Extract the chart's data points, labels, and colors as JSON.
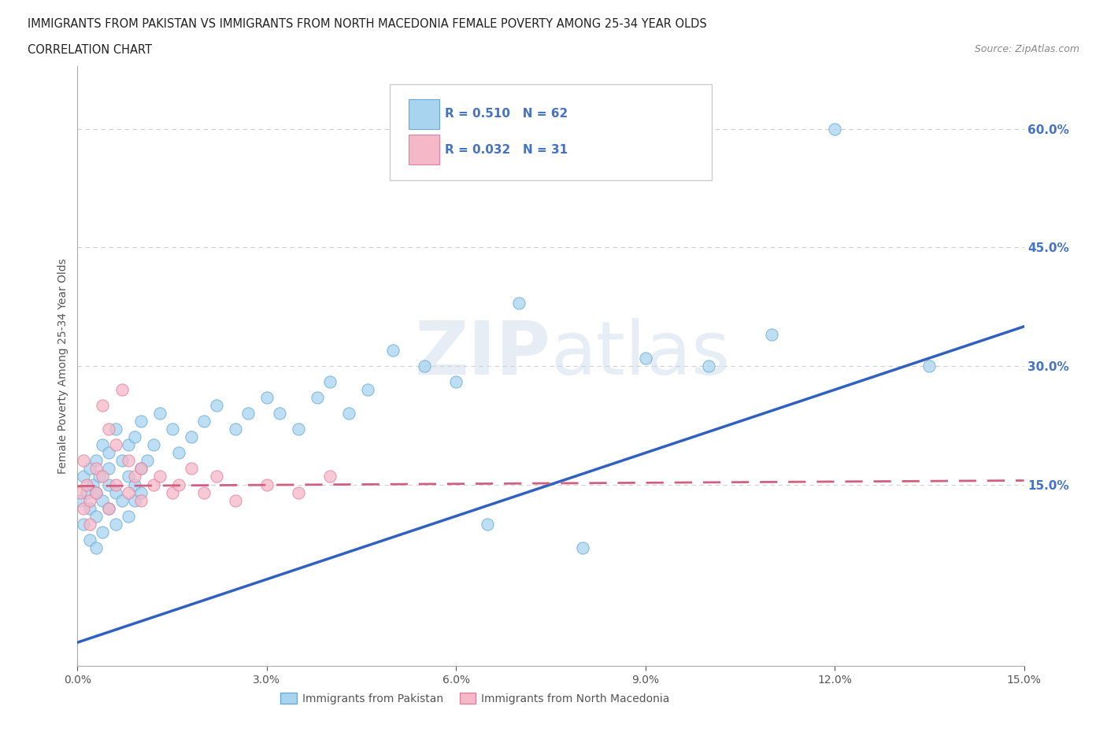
{
  "title_line1": "IMMIGRANTS FROM PAKISTAN VS IMMIGRANTS FROM NORTH MACEDONIA FEMALE POVERTY AMONG 25-34 YEAR OLDS",
  "title_line2": "CORRELATION CHART",
  "source_text": "Source: ZipAtlas.com",
  "ylabel": "Female Poverty Among 25-34 Year Olds",
  "xlim": [
    0.0,
    0.15
  ],
  "ylim": [
    -0.08,
    0.68
  ],
  "xticks": [
    0.0,
    0.03,
    0.06,
    0.09,
    0.12,
    0.15
  ],
  "yticks": [
    0.15,
    0.3,
    0.45,
    0.6
  ],
  "pakistan_color": "#a8d4f0",
  "pakistan_edge": "#6aaad4",
  "macedonia_color": "#f5b8c8",
  "macedonia_edge": "#e080a0",
  "trend_pakistan_color": "#3060c0",
  "trend_macedonia_color": "#d06080",
  "legend_R_pakistan": "R = 0.510",
  "legend_N_pakistan": "N = 62",
  "legend_R_macedonia": "R = 0.032",
  "legend_N_macedonia": "N = 31",
  "legend_label_pakistan": "Immigrants from Pakistan",
  "legend_label_macedonia": "Immigrants from North Macedonia",
  "watermark_zip": "ZIP",
  "watermark_atlas": "atlas",
  "ytick_color": "#4472c4",
  "grid_color": "#d0d0d0",
  "background_color": "#ffffff",
  "pak_x": [
    0.0005,
    0.001,
    0.001,
    0.0015,
    0.002,
    0.002,
    0.002,
    0.0025,
    0.003,
    0.003,
    0.003,
    0.003,
    0.0035,
    0.004,
    0.004,
    0.004,
    0.005,
    0.005,
    0.005,
    0.005,
    0.006,
    0.006,
    0.006,
    0.007,
    0.007,
    0.008,
    0.008,
    0.008,
    0.009,
    0.009,
    0.009,
    0.01,
    0.01,
    0.01,
    0.011,
    0.012,
    0.013,
    0.015,
    0.016,
    0.018,
    0.02,
    0.022,
    0.025,
    0.027,
    0.03,
    0.032,
    0.035,
    0.038,
    0.04,
    0.043,
    0.046,
    0.05,
    0.055,
    0.06,
    0.065,
    0.07,
    0.08,
    0.09,
    0.1,
    0.11,
    0.12,
    0.135
  ],
  "pak_y": [
    0.13,
    0.1,
    0.16,
    0.14,
    0.12,
    0.08,
    0.17,
    0.15,
    0.18,
    0.11,
    0.14,
    0.07,
    0.16,
    0.13,
    0.2,
    0.09,
    0.15,
    0.19,
    0.12,
    0.17,
    0.14,
    0.22,
    0.1,
    0.18,
    0.13,
    0.2,
    0.16,
    0.11,
    0.15,
    0.21,
    0.13,
    0.17,
    0.14,
    0.23,
    0.18,
    0.2,
    0.24,
    0.22,
    0.19,
    0.21,
    0.23,
    0.25,
    0.22,
    0.24,
    0.26,
    0.24,
    0.22,
    0.26,
    0.28,
    0.24,
    0.27,
    0.32,
    0.3,
    0.28,
    0.1,
    0.38,
    0.07,
    0.31,
    0.3,
    0.34,
    0.6,
    0.3
  ],
  "mac_x": [
    0.0005,
    0.001,
    0.001,
    0.0015,
    0.002,
    0.002,
    0.003,
    0.003,
    0.004,
    0.004,
    0.005,
    0.005,
    0.006,
    0.006,
    0.007,
    0.008,
    0.008,
    0.009,
    0.01,
    0.01,
    0.012,
    0.013,
    0.015,
    0.016,
    0.018,
    0.02,
    0.022,
    0.025,
    0.03,
    0.035,
    0.04
  ],
  "mac_y": [
    0.14,
    0.12,
    0.18,
    0.15,
    0.13,
    0.1,
    0.17,
    0.14,
    0.25,
    0.16,
    0.22,
    0.12,
    0.15,
    0.2,
    0.27,
    0.14,
    0.18,
    0.16,
    0.13,
    0.17,
    0.15,
    0.16,
    0.14,
    0.15,
    0.17,
    0.14,
    0.16,
    0.13,
    0.15,
    0.14,
    0.16
  ],
  "trend_pak_x0": 0.0,
  "trend_pak_y0": -0.05,
  "trend_pak_x1": 0.15,
  "trend_pak_y1": 0.35,
  "trend_mac_x0": 0.0,
  "trend_mac_y0": 0.148,
  "trend_mac_x1": 0.15,
  "trend_mac_y1": 0.155
}
